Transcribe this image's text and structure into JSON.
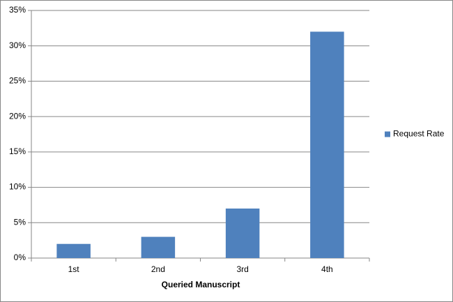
{
  "chart_data": {
    "type": "bar",
    "categories": [
      "1st",
      "2nd",
      "3rd",
      "4th"
    ],
    "series": [
      {
        "name": "Request Rate",
        "color": "#4f81bd",
        "values": [
          2,
          3,
          7,
          32
        ]
      }
    ],
    "x_label": "Queried Manuscript",
    "ylim": [
      0,
      35
    ],
    "yticks": [
      {
        "value": 0,
        "label": "0%"
      },
      {
        "value": 5,
        "label": "5%"
      },
      {
        "value": 10,
        "label": "10%"
      },
      {
        "value": 15,
        "label": "15%"
      },
      {
        "value": 20,
        "label": "20%"
      },
      {
        "value": 25,
        "label": "25%"
      },
      {
        "value": 30,
        "label": "30%"
      },
      {
        "value": 35,
        "label": "35%"
      }
    ],
    "grid": true,
    "legend": "right"
  }
}
